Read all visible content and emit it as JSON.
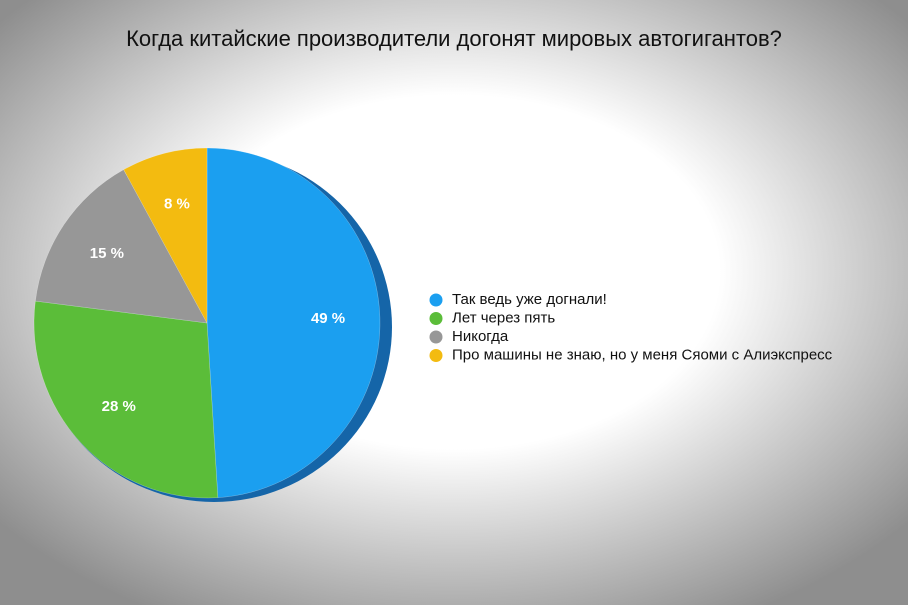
{
  "chart_data": {
    "type": "pie",
    "title": "Когда китайские производители догонят мировых автогигантов?",
    "categories": [
      "Так ведь уже догнали!",
      "Лет через пять",
      "Никогда",
      "Про машины не знаю, но у меня Сяоми с Алиэкспресс"
    ],
    "values": [
      49,
      28,
      15,
      8
    ],
    "value_labels": [
      "49 %",
      "28 %",
      "15 %",
      "8 %"
    ],
    "colors": [
      "#1b9ff0",
      "#5bbd39",
      "#979797",
      "#f3bb10"
    ],
    "legend": "right"
  }
}
